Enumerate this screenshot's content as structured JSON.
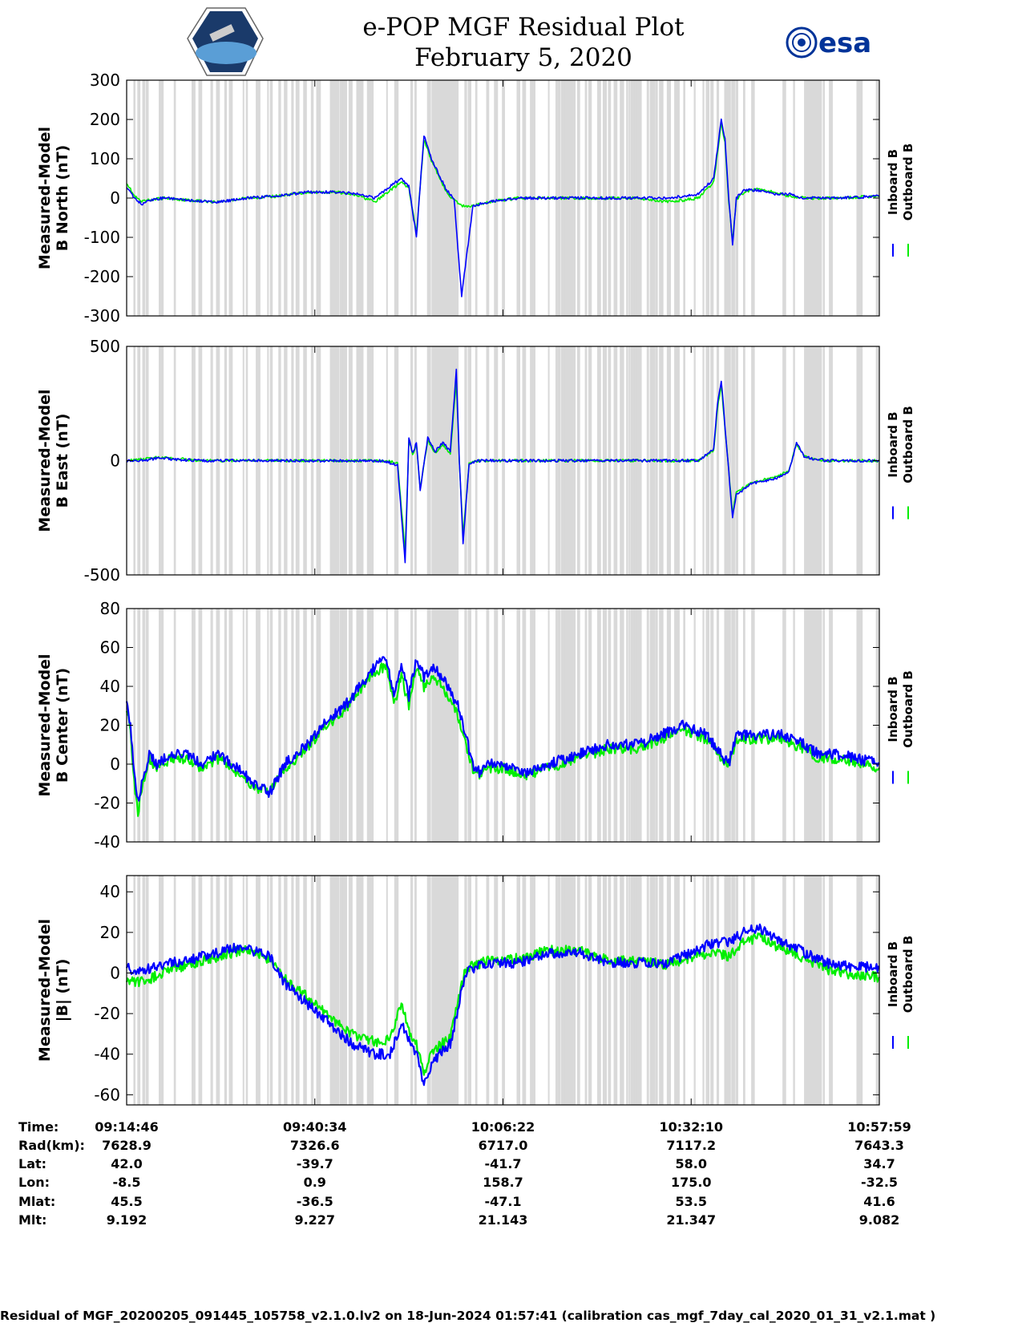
{
  "header": {
    "title_line1": "e-POP MGF Residual Plot",
    "title_line2": "February 5, 2020",
    "esa_logo_text": "esa",
    "left_logo": "cassiope-mission-icon"
  },
  "chart_data": [
    {
      "type": "line",
      "ylabel_line1": "Measured-Model",
      "ylabel_line2": "B North (nT)",
      "ylim": [
        -300,
        300
      ],
      "yticks": [
        300,
        200,
        100,
        0,
        -100,
        -200,
        -300
      ],
      "legend": [
        "Inboard B",
        "Outboard B"
      ],
      "legend_placement": "right",
      "series": [
        {
          "name": "Inboard B",
          "color": "#0000ff",
          "x": [
            0,
            1,
            2,
            3,
            5,
            8,
            12,
            16,
            20,
            24,
            28,
            31,
            33,
            35,
            36.5,
            37.5,
            38.5,
            39.5,
            40.5,
            41.5,
            42.5,
            43.5,
            44.5,
            46,
            48,
            52,
            56,
            60,
            64,
            68,
            72,
            76,
            78,
            79,
            79.5,
            80,
            80.5,
            81,
            82,
            84,
            86,
            88,
            90,
            92,
            95,
            100
          ],
          "y": [
            30,
            0,
            -15,
            -5,
            0,
            -5,
            -10,
            0,
            5,
            15,
            15,
            10,
            0,
            30,
            50,
            30,
            -100,
            160,
            100,
            60,
            20,
            0,
            -250,
            -20,
            -10,
            0,
            0,
            0,
            0,
            0,
            0,
            10,
            50,
            200,
            150,
            0,
            -120,
            0,
            20,
            20,
            10,
            10,
            0,
            0,
            0,
            5
          ]
        },
        {
          "name": "Outboard B",
          "color": "#00ee00",
          "x": [
            0,
            1,
            2,
            3,
            5,
            8,
            12,
            16,
            20,
            24,
            28,
            31,
            33,
            35,
            36.5,
            37.5,
            38.5,
            39.5,
            40.5,
            41.5,
            42.5,
            43.5,
            44.5,
            46,
            48,
            52,
            56,
            60,
            64,
            68,
            72,
            76,
            78,
            79,
            79.5,
            80,
            80.5,
            81,
            82,
            84,
            86,
            88,
            90,
            92,
            95,
            100
          ],
          "y": [
            40,
            5,
            -10,
            -5,
            0,
            -5,
            -10,
            0,
            5,
            15,
            15,
            5,
            -10,
            20,
            40,
            25,
            -90,
            150,
            95,
            55,
            15,
            -5,
            -20,
            -20,
            -10,
            0,
            0,
            0,
            0,
            0,
            -10,
            0,
            40,
            190,
            140,
            -10,
            -110,
            -5,
            15,
            25,
            15,
            5,
            0,
            0,
            0,
            5
          ]
        }
      ]
    },
    {
      "type": "line",
      "ylabel_line1": "Measured-Model",
      "ylabel_line2": "B East (nT)",
      "ylim": [
        -500,
        500
      ],
      "yticks": [
        500,
        0,
        -500
      ],
      "legend": [
        "Inboard B",
        "Outboard B"
      ],
      "legend_placement": "right",
      "series": [
        {
          "name": "Inboard B",
          "color": "#0000ff",
          "x": [
            0,
            2,
            4,
            10,
            20,
            30,
            34,
            36,
            37,
            37.5,
            38,
            38.5,
            39,
            40,
            41,
            42,
            43,
            43.8,
            44.2,
            44.7,
            45.5,
            47,
            52,
            60,
            70,
            76,
            78,
            78.5,
            79,
            79.5,
            80,
            80.5,
            81,
            83,
            86,
            88,
            89,
            90,
            91,
            93,
            100
          ],
          "y": [
            0,
            0,
            10,
            0,
            0,
            0,
            0,
            -20,
            -450,
            100,
            30,
            80,
            -130,
            100,
            40,
            80,
            40,
            400,
            0,
            -360,
            -10,
            0,
            0,
            0,
            0,
            0,
            50,
            250,
            350,
            150,
            -50,
            -250,
            -150,
            -100,
            -80,
            -50,
            80,
            20,
            10,
            0,
            0
          ]
        },
        {
          "name": "Outboard B",
          "color": "#00ee00",
          "x": [
            0,
            2,
            4,
            10,
            20,
            30,
            34,
            36,
            37,
            37.5,
            38,
            38.5,
            39,
            40,
            41,
            42,
            43,
            43.8,
            44.2,
            44.7,
            45.5,
            47,
            52,
            60,
            70,
            76,
            78,
            78.5,
            79,
            79.5,
            80,
            80.5,
            81,
            83,
            86,
            88,
            89,
            90,
            91,
            93,
            100
          ],
          "y": [
            0,
            5,
            15,
            0,
            0,
            0,
            0,
            -10,
            -400,
            90,
            25,
            70,
            -120,
            90,
            35,
            70,
            30,
            350,
            0,
            -330,
            -10,
            0,
            0,
            0,
            0,
            0,
            45,
            230,
            330,
            140,
            -45,
            -230,
            -140,
            -95,
            -75,
            -45,
            75,
            20,
            10,
            0,
            0
          ]
        }
      ]
    },
    {
      "type": "line",
      "ylabel_line1": "Measured-Model",
      "ylabel_line2": "B Center (nT)",
      "ylim": [
        -40,
        80
      ],
      "yticks": [
        80,
        60,
        40,
        20,
        0,
        -20,
        -40
      ],
      "legend": [
        "Inboard B",
        "Outboard B"
      ],
      "legend_placement": "right",
      "series": [
        {
          "name": "Inboard B",
          "color": "#0000ff",
          "x": [
            0,
            0.5,
            1,
            1.5,
            2,
            3,
            4,
            6,
            8,
            10,
            12,
            14,
            17,
            19,
            21,
            24,
            26,
            29,
            31,
            33,
            34.5,
            35.5,
            36.5,
            37.5,
            38.5,
            39.5,
            40.5,
            42,
            44,
            46,
            47,
            48,
            50,
            53,
            56,
            60,
            64,
            68,
            71,
            74,
            77,
            79,
            80,
            81,
            82,
            84,
            87,
            90,
            92,
            95,
            100
          ],
          "y": [
            35,
            20,
            -5,
            -20,
            -10,
            5,
            0,
            5,
            5,
            0,
            5,
            0,
            -10,
            -15,
            0,
            10,
            20,
            30,
            40,
            50,
            55,
            35,
            50,
            35,
            55,
            45,
            50,
            45,
            30,
            0,
            -5,
            0,
            0,
            -5,
            0,
            5,
            10,
            10,
            15,
            20,
            15,
            5,
            0,
            15,
            15,
            15,
            15,
            10,
            5,
            5,
            0
          ]
        },
        {
          "name": "Outboard B",
          "color": "#00ee00",
          "x": [
            0,
            0.5,
            1,
            1.5,
            2,
            3,
            4,
            6,
            8,
            10,
            12,
            14,
            17,
            19,
            21,
            24,
            26,
            29,
            31,
            33,
            34.5,
            35.5,
            36.5,
            37.5,
            38.5,
            39.5,
            40.5,
            42,
            44,
            46,
            47,
            48,
            50,
            53,
            56,
            60,
            64,
            68,
            71,
            74,
            77,
            79,
            80,
            81,
            82,
            84,
            87,
            90,
            92,
            95,
            100
          ],
          "y": [
            30,
            15,
            -10,
            -25,
            -12,
            3,
            -2,
            3,
            3,
            -2,
            3,
            -2,
            -12,
            -15,
            -2,
            8,
            18,
            28,
            38,
            48,
            50,
            30,
            45,
            30,
            50,
            40,
            45,
            40,
            25,
            -2,
            -6,
            -2,
            -2,
            -6,
            -2,
            3,
            8,
            8,
            13,
            18,
            13,
            3,
            -2,
            13,
            13,
            13,
            13,
            8,
            3,
            3,
            -2
          ]
        }
      ]
    },
    {
      "type": "line",
      "ylabel_line1": "Measured-Model",
      "ylabel_line2": "|B| (nT)",
      "ylim": [
        -65,
        48
      ],
      "yticks": [
        40,
        20,
        0,
        -20,
        -40,
        -60
      ],
      "legend": [
        "Inboard B",
        "Outboard B"
      ],
      "legend_placement": "right",
      "series": [
        {
          "name": "Inboard B",
          "color": "#0000ff",
          "x": [
            0,
            1,
            3,
            6,
            10,
            14,
            16,
            19,
            21,
            24,
            27,
            30,
            33,
            35,
            36.5,
            37.5,
            38.5,
            39.5,
            40.5,
            41.5,
            43,
            45,
            48,
            52,
            56,
            60,
            64,
            68,
            72,
            75,
            78,
            80,
            82,
            84,
            86,
            90,
            93,
            96,
            100
          ],
          "y": [
            5,
            0,
            2,
            5,
            8,
            12,
            12,
            8,
            -5,
            -15,
            -25,
            -35,
            -40,
            -40,
            -25,
            -32,
            -40,
            -55,
            -45,
            -40,
            -35,
            0,
            5,
            5,
            10,
            10,
            5,
            5,
            5,
            10,
            15,
            15,
            20,
            22,
            18,
            10,
            5,
            3,
            3
          ]
        },
        {
          "name": "Outboard B",
          "color": "#00ee00",
          "x": [
            0,
            1,
            3,
            6,
            10,
            14,
            16,
            19,
            21,
            24,
            27,
            30,
            33,
            35,
            36.5,
            37.5,
            38.5,
            39.5,
            40.5,
            41.5,
            43,
            45,
            48,
            52,
            56,
            60,
            64,
            68,
            72,
            75,
            78,
            80,
            82,
            84,
            86,
            90,
            93,
            96,
            100
          ],
          "y": [
            -2,
            -5,
            -3,
            2,
            6,
            10,
            11,
            7,
            -3,
            -12,
            -22,
            -30,
            -34,
            -33,
            -15,
            -28,
            -35,
            -50,
            -40,
            -36,
            -32,
            2,
            6,
            7,
            11,
            11,
            6,
            6,
            4,
            8,
            10,
            8,
            15,
            18,
            14,
            7,
            2,
            -1,
            -2
          ]
        }
      ]
    }
  ],
  "x_info": {
    "row_labels": [
      "Time:",
      "Rad(km):",
      "Lat:",
      "Lon:",
      "Mlat:",
      "Mlt:"
    ],
    "columns": [
      [
        "09:14:46",
        "7628.9",
        "42.0",
        "-8.5",
        "45.5",
        "9.192"
      ],
      [
        "09:40:34",
        "7326.6",
        "-39.7",
        "0.9",
        "-36.5",
        "9.227"
      ],
      [
        "10:06:22",
        "6717.0",
        "-41.7",
        "158.7",
        "-47.1",
        "21.143"
      ],
      [
        "10:32:10",
        "7117.2",
        "58.0",
        "175.0",
        "53.5",
        "21.347"
      ],
      [
        "10:57:59",
        "7643.3",
        "34.7",
        "-32.5",
        "41.6",
        "9.082"
      ]
    ]
  },
  "footer": {
    "text": "Residual of MGF_20200205_091445_105758_v2.1.0.lv2 on 18-Jun-2024 01:57:41 (calibration cas_mgf_7day_cal_2020_01_31_v2.1.mat )"
  },
  "colors": {
    "inboard": "#0000ff",
    "outboard": "#00ee00",
    "gap_shading": "#d9d9d9",
    "esa_blue": "#003399"
  }
}
